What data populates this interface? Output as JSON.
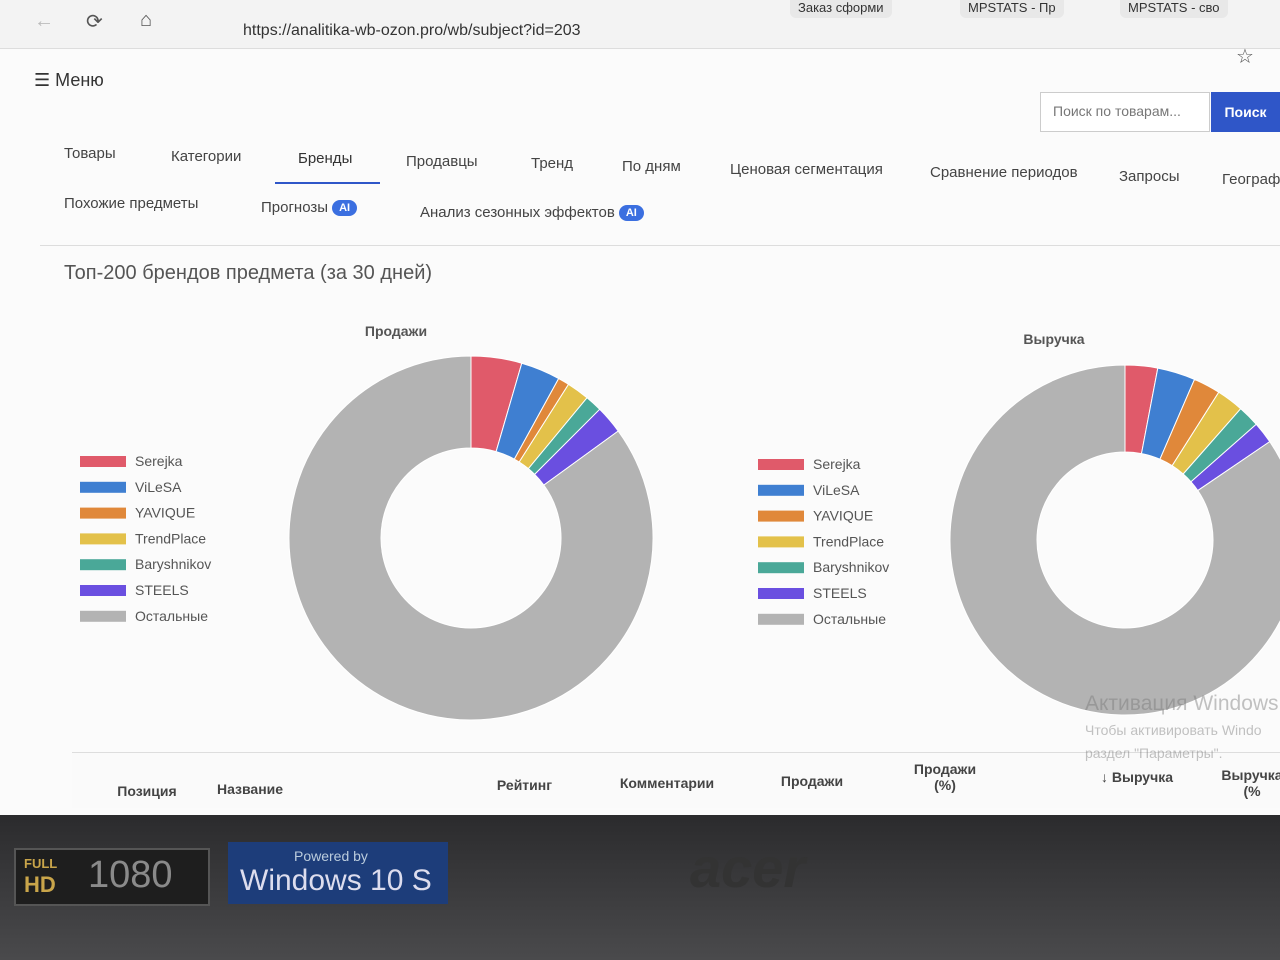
{
  "browser": {
    "tabs": [
      "Заказ сформи",
      "MPSTATS - Пр",
      "MPSTATS - сво"
    ],
    "url": "https://analitika-wb-ozon.pro/wb/subject?id=203"
  },
  "header": {
    "menu": "Меню",
    "search_placeholder": "Поиск по товарам...",
    "search_button": "Поиск"
  },
  "tabs": {
    "row1": [
      "Товары",
      "Категории",
      "Бренды",
      "Продавцы",
      "Тренд",
      "По дням",
      "Ценовая сегментация",
      "Сравнение периодов",
      "Запросы",
      "Географи"
    ],
    "row2": [
      {
        "label": "Похожие предметы"
      },
      {
        "label": "Прогнозы",
        "badge": "AI"
      },
      {
        "label": "Анализ сезонных эффектов",
        "badge": "AI"
      }
    ],
    "active": "Бренды"
  },
  "section_title": "Топ-200 брендов предмета (за 30 дней)",
  "chart_data": [
    {
      "type": "pie",
      "title": "Продажи",
      "categories": [
        "Serejka",
        "ViLeSA",
        "YAVIQUE",
        "TrendPlace",
        "Baryshnikov",
        "STEELS",
        "Остальные"
      ],
      "values": [
        4.5,
        3.5,
        1,
        2,
        1.5,
        2.5,
        85
      ],
      "colors": [
        "#e05a6a",
        "#3f7fd1",
        "#e0883a",
        "#e3c14a",
        "#4aa898",
        "#6a4fe0",
        "#b3b3b3"
      ],
      "legend": "left"
    },
    {
      "type": "pie",
      "title": "Выручка",
      "categories": [
        "Serejka",
        "ViLeSA",
        "YAVIQUE",
        "TrendPlace",
        "Baryshnikov",
        "STEELS",
        "Остальные"
      ],
      "values": [
        3,
        3.5,
        2.5,
        2.5,
        2,
        2,
        84.5
      ],
      "colors": [
        "#e05a6a",
        "#3f7fd1",
        "#e0883a",
        "#e3c14a",
        "#4aa898",
        "#6a4fe0",
        "#b3b3b3"
      ],
      "legend": "left"
    }
  ],
  "table": {
    "headers": [
      "Позиция",
      "Название",
      "Рейтинг",
      "Комментарии",
      "Продажи",
      "Продажи (%)",
      "↓ Выручка",
      "Выручка (%"
    ]
  },
  "watermark": [
    "Активация Windows",
    "Чтобы активировать Windo",
    "раздел \"Параметры\"."
  ],
  "laptop": {
    "hd_top": "FULL",
    "hd_bottom": "HD",
    "resolution": "1080",
    "powered": "Powered by",
    "os": "Windows 10 S",
    "brand": "acer"
  }
}
